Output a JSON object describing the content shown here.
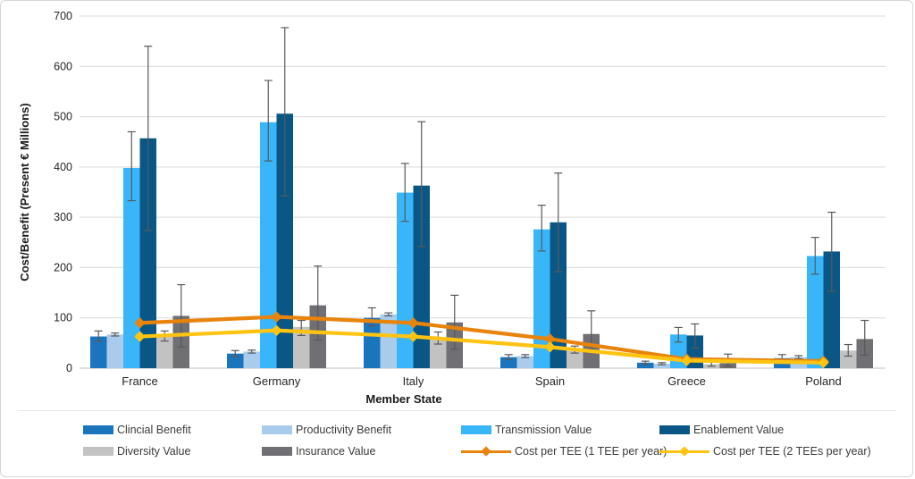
{
  "figure": {
    "ylabel": "Cost/Benefit (Present € Millions)",
    "xlabel": "Member State"
  },
  "colors": {
    "grid": "#d9d9d9",
    "baseline": "#bfbfbf",
    "error_bar": "#595959",
    "tick_text": "#262626",
    "axis_title_text": "#1a1a1a"
  },
  "chart_data": {
    "type": "bar",
    "subtype": "grouped bars with error bars plus two overlay line series",
    "categories": [
      "France",
      "Germany",
      "Italy",
      "Spain",
      "Greece",
      "Poland"
    ],
    "title": "",
    "xlabel": "Member State",
    "ylabel": "Cost/Benefit (Present € Millions)",
    "ylim": [
      0,
      700
    ],
    "ytick_step": 100,
    "grid": true,
    "legend_position": "bottom",
    "bar_series": [
      {
        "name": "Clincial Benefit",
        "color": "#1b75bc",
        "values": [
          63,
          29,
          100,
          22,
          11,
          20
        ],
        "err_lo": [
          54,
          23,
          84,
          17,
          8,
          14
        ],
        "err_hi": [
          74,
          35,
          120,
          27,
          14,
          27
        ]
      },
      {
        "name": "Productivity Benefit",
        "color": "#a9ccec",
        "values": [
          67,
          33,
          107,
          24,
          9,
          22
        ],
        "err_lo": [
          64,
          30,
          104,
          21,
          7,
          19
        ],
        "err_hi": [
          70,
          36,
          110,
          27,
          11,
          25
        ]
      },
      {
        "name": "Transmission Value",
        "color": "#38b6f9",
        "values": [
          398,
          489,
          349,
          276,
          67,
          223
        ],
        "err_lo": [
          333,
          412,
          292,
          233,
          52,
          187
        ],
        "err_hi": [
          470,
          572,
          407,
          324,
          81,
          260
        ]
      },
      {
        "name": "Enablement Value",
        "color": "#0a5786",
        "values": [
          457,
          506,
          363,
          290,
          65,
          232
        ],
        "err_lo": [
          274,
          343,
          242,
          192,
          40,
          153
        ],
        "err_hi": [
          640,
          677,
          490,
          388,
          88,
          310
        ]
      },
      {
        "name": "Diversity Value",
        "color": "#c2c2c2",
        "values": [
          65,
          82,
          62,
          36,
          8,
          35
        ],
        "err_lo": [
          54,
          65,
          48,
          30,
          4,
          24
        ],
        "err_hi": [
          74,
          95,
          72,
          44,
          12,
          47
        ]
      },
      {
        "name": "Insurance Value",
        "color": "#6f6f74",
        "values": [
          104,
          125,
          91,
          68,
          10,
          58
        ],
        "err_lo": [
          42,
          56,
          38,
          38,
          4,
          26
        ],
        "err_hi": [
          166,
          203,
          145,
          114,
          28,
          95
        ]
      }
    ],
    "line_series": [
      {
        "name": "Cost per TEE (1 TEE per year)",
        "color": "#e8840c",
        "values": [
          90,
          102,
          90,
          58,
          18,
          14
        ]
      },
      {
        "name": "Cost per TEE (2 TEEs per year)",
        "color": "#ffc412",
        "values": [
          63,
          75,
          63,
          42,
          15,
          11
        ]
      }
    ]
  }
}
